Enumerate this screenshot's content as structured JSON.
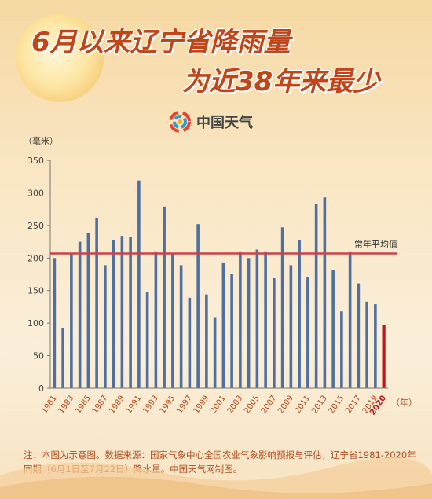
{
  "title_line1": "6月以来辽宁省降雨量",
  "title_line2": "为近38年来最少",
  "brand_name": "中国天气",
  "note": "注：本图为示意图。数据来源：国家气象中心全国农业气象影响预报与评估，辽宁省1981-2020年同期（6月1日至7月22日）降水量。中国天气网制图。",
  "colors": {
    "bar": "#4f6fa0",
    "bar_highlight": "#c0161c",
    "average_line": "#c6454a",
    "title": "#c0461a"
  },
  "chart_data": {
    "type": "bar",
    "ylabel": "（毫米）",
    "xlabel": "（年）",
    "ylim": [
      0,
      350
    ],
    "yticks": [
      0,
      50,
      100,
      150,
      200,
      250,
      300,
      350
    ],
    "categories": [
      "1981",
      "1982",
      "1983",
      "1984",
      "1985",
      "1986",
      "1987",
      "1988",
      "1989",
      "1990",
      "1991",
      "1992",
      "1993",
      "1994",
      "1995",
      "1996",
      "1997",
      "1998",
      "1999",
      "2000",
      "2001",
      "2002",
      "2003",
      "2004",
      "2005",
      "2006",
      "2007",
      "2008",
      "2009",
      "2010",
      "2011",
      "2012",
      "2013",
      "2014",
      "2015",
      "2016",
      "2017",
      "2018",
      "2019",
      "2020"
    ],
    "x_tick_labels": [
      "1981",
      "1983",
      "1985",
      "1987",
      "1989",
      "1991",
      "1993",
      "1995",
      "1997",
      "1999",
      "2001",
      "2003",
      "2005",
      "2007",
      "2009",
      "2011",
      "2013",
      "2015",
      "2017",
      "2019",
      "2020"
    ],
    "series": [
      {
        "values": [
          200,
          92,
          207,
          225,
          238,
          262,
          189,
          228,
          234,
          232,
          319,
          148,
          209,
          279,
          207,
          189,
          139,
          252,
          144,
          108,
          192,
          175,
          209,
          200,
          213,
          209,
          169,
          247,
          189,
          228,
          170,
          283,
          293,
          181,
          118,
          209,
          161,
          133,
          129,
          97
        ]
      }
    ],
    "highlight_category": "2020",
    "reference_line": {
      "value": 207,
      "label": "常年平均值"
    },
    "grid": false
  }
}
